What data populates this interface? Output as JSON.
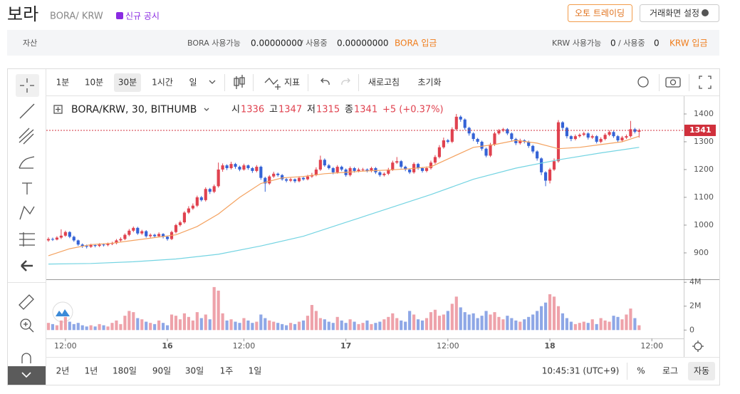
{
  "header": {
    "title": "보라",
    "pair": "BORA/ KRW",
    "badge": "신규 공시",
    "auto_trading": "오토 트레이딩",
    "settings": "거래화면 설정"
  },
  "asset_bar": {
    "label": "자산",
    "bora_available_label": "BORA 사용가능",
    "bora_available": "0.00000000",
    "bora_in_use_label": "/ 사용중",
    "bora_in_use": "0.00000000",
    "bora_deposit": "BORA 입금",
    "krw_available_label": "KRW 사용가능",
    "krw_available": "0",
    "krw_in_use_label": "/ 사용중",
    "krw_in_use": "0",
    "krw_deposit": "KRW 입금"
  },
  "toolbar": {
    "intervals": [
      "1분",
      "10분",
      "30분",
      "1시간",
      "일"
    ],
    "indicator": "지표",
    "refresh": "새로고침",
    "reset": "초기화"
  },
  "bottom_bar": {
    "ranges": [
      "2년",
      "1년",
      "180일",
      "90일",
      "30일",
      "1주",
      "1일"
    ],
    "clock": "10:45:31 (UTC+9)",
    "percent": "%",
    "log": "로그",
    "auto": "자동"
  },
  "chart_data": {
    "type": "candlestick",
    "legend": {
      "symbol": "BORA/KRW, 30, BITHUMB",
      "open_label": "시",
      "high_label": "고",
      "low_label": "저",
      "close_label": "종",
      "change": "+5 (+0.37%)"
    },
    "up_color": "#e0424f",
    "down_color": "#3563d6",
    "up_volume_color": "#eea2aa",
    "down_volume_color": "#8ea7e6",
    "last_price_color": "#d0303c",
    "xlim": [
      -0.5,
      149.5
    ],
    "xticks": [
      {
        "value": 4,
        "label": "12:00"
      },
      {
        "value": 28,
        "label": "16"
      },
      {
        "value": 46,
        "label": "12:00"
      },
      {
        "value": 70,
        "label": "17"
      },
      {
        "value": 94,
        "label": "12:00"
      },
      {
        "value": 118,
        "label": "18"
      },
      {
        "value": 142,
        "label": "12:00"
      }
    ],
    "ylim": [
      805,
      1464
    ],
    "yticks": [
      900,
      1000,
      1100,
      1200,
      1300,
      1400
    ],
    "volume_ylim": [
      -700000,
      4250000
    ],
    "volume_yticks": [
      0,
      {
        "value": 2000000,
        "label": "2M"
      },
      {
        "value": 4000000,
        "label": "4M"
      }
    ],
    "candles": [
      [
        945,
        956,
        940,
        950
      ],
      [
        950,
        955,
        943,
        948
      ],
      [
        948,
        960,
        945,
        955
      ],
      [
        955,
        985,
        950,
        962
      ],
      [
        962,
        980,
        958,
        975
      ],
      [
        975,
        978,
        953,
        958
      ],
      [
        958,
        962,
        940,
        945
      ],
      [
        945,
        948,
        925,
        930
      ],
      [
        930,
        934,
        918,
        925
      ],
      [
        925,
        930,
        916,
        922
      ],
      [
        922,
        933,
        918,
        928
      ],
      [
        928,
        932,
        920,
        925
      ],
      [
        925,
        935,
        921,
        930
      ],
      [
        930,
        934,
        923,
        928
      ],
      [
        928,
        937,
        924,
        932
      ],
      [
        932,
        940,
        928,
        935
      ],
      [
        935,
        950,
        931,
        945
      ],
      [
        945,
        956,
        940,
        950
      ],
      [
        950,
        970,
        946,
        965
      ],
      [
        965,
        986,
        960,
        980
      ],
      [
        980,
        995,
        975,
        990
      ],
      [
        990,
        994,
        965,
        970
      ],
      [
        970,
        983,
        965,
        978
      ],
      [
        978,
        982,
        955,
        960
      ],
      [
        960,
        970,
        955,
        965
      ],
      [
        965,
        969,
        954,
        960
      ],
      [
        960,
        974,
        956,
        968
      ],
      [
        968,
        971,
        952,
        958
      ],
      [
        958,
        962,
        944,
        950
      ],
      [
        950,
        980,
        946,
        975
      ],
      [
        975,
        1005,
        970,
        1000
      ],
      [
        1000,
        1016,
        995,
        1010
      ],
      [
        1010,
        1050,
        1005,
        1045
      ],
      [
        1045,
        1068,
        1040,
        1060
      ],
      [
        1060,
        1078,
        1055,
        1070
      ],
      [
        1070,
        1106,
        1065,
        1100
      ],
      [
        1100,
        1105,
        1085,
        1090
      ],
      [
        1090,
        1136,
        1085,
        1130
      ],
      [
        1130,
        1134,
        1112,
        1120
      ],
      [
        1120,
        1146,
        1115,
        1140
      ],
      [
        1140,
        1225,
        1135,
        1200
      ],
      [
        1200,
        1222,
        1192,
        1215
      ],
      [
        1215,
        1219,
        1198,
        1205
      ],
      [
        1205,
        1228,
        1200,
        1220
      ],
      [
        1220,
        1224,
        1203,
        1210
      ],
      [
        1210,
        1214,
        1194,
        1200
      ],
      [
        1200,
        1221,
        1196,
        1215
      ],
      [
        1215,
        1218,
        1199,
        1205
      ],
      [
        1205,
        1209,
        1188,
        1195
      ],
      [
        1195,
        1216,
        1190,
        1210
      ],
      [
        1210,
        1214,
        1163,
        1170
      ],
      [
        1170,
        1174,
        1120,
        1150
      ],
      [
        1150,
        1180,
        1145,
        1175
      ],
      [
        1175,
        1192,
        1170,
        1185
      ],
      [
        1185,
        1189,
        1174,
        1180
      ],
      [
        1180,
        1184,
        1160,
        1165
      ],
      [
        1165,
        1169,
        1154,
        1160
      ],
      [
        1160,
        1170,
        1155,
        1165
      ],
      [
        1165,
        1168,
        1152,
        1158
      ],
      [
        1158,
        1176,
        1154,
        1170
      ],
      [
        1170,
        1174,
        1160,
        1165
      ],
      [
        1165,
        1181,
        1161,
        1175
      ],
      [
        1175,
        1188,
        1170,
        1180
      ],
      [
        1180,
        1208,
        1176,
        1200
      ],
      [
        1200,
        1250,
        1195,
        1235
      ],
      [
        1235,
        1240,
        1210,
        1215
      ],
      [
        1215,
        1220,
        1200,
        1205
      ],
      [
        1205,
        1209,
        1183,
        1190
      ],
      [
        1190,
        1216,
        1185,
        1210
      ],
      [
        1210,
        1214,
        1194,
        1200
      ],
      [
        1200,
        1204,
        1174,
        1180
      ],
      [
        1180,
        1211,
        1175,
        1205
      ],
      [
        1205,
        1209,
        1189,
        1195
      ],
      [
        1195,
        1206,
        1190,
        1200
      ],
      [
        1200,
        1206,
        1194,
        1200
      ],
      [
        1200,
        1204,
        1190,
        1195
      ],
      [
        1195,
        1210,
        1190,
        1205
      ],
      [
        1205,
        1209,
        1184,
        1190
      ],
      [
        1190,
        1194,
        1174,
        1180
      ],
      [
        1180,
        1190,
        1175,
        1185
      ],
      [
        1185,
        1206,
        1180,
        1200
      ],
      [
        1200,
        1232,
        1195,
        1225
      ],
      [
        1225,
        1245,
        1220,
        1230
      ],
      [
        1230,
        1234,
        1204,
        1210
      ],
      [
        1210,
        1214,
        1194,
        1200
      ],
      [
        1200,
        1204,
        1184,
        1190
      ],
      [
        1190,
        1226,
        1185,
        1220
      ],
      [
        1220,
        1224,
        1199,
        1205
      ],
      [
        1205,
        1209,
        1189,
        1195
      ],
      [
        1195,
        1211,
        1190,
        1205
      ],
      [
        1205,
        1232,
        1200,
        1225
      ],
      [
        1225,
        1252,
        1220,
        1245
      ],
      [
        1245,
        1288,
        1240,
        1280
      ],
      [
        1280,
        1315,
        1275,
        1305
      ],
      [
        1305,
        1310,
        1294,
        1300
      ],
      [
        1300,
        1352,
        1295,
        1345
      ],
      [
        1345,
        1400,
        1340,
        1390
      ],
      [
        1390,
        1395,
        1372,
        1380
      ],
      [
        1380,
        1384,
        1343,
        1350
      ],
      [
        1350,
        1354,
        1322,
        1330
      ],
      [
        1330,
        1334,
        1302,
        1310
      ],
      [
        1310,
        1314,
        1292,
        1300
      ],
      [
        1300,
        1304,
        1268,
        1275
      ],
      [
        1275,
        1279,
        1244,
        1250
      ],
      [
        1250,
        1296,
        1245,
        1290
      ],
      [
        1290,
        1336,
        1285,
        1330
      ],
      [
        1330,
        1346,
        1325,
        1340
      ],
      [
        1340,
        1350,
        1335,
        1345
      ],
      [
        1345,
        1349,
        1324,
        1330
      ],
      [
        1330,
        1334,
        1304,
        1310
      ],
      [
        1310,
        1314,
        1288,
        1295
      ],
      [
        1295,
        1311,
        1290,
        1305
      ],
      [
        1305,
        1309,
        1294,
        1300
      ],
      [
        1300,
        1304,
        1278,
        1285
      ],
      [
        1285,
        1289,
        1258,
        1265
      ],
      [
        1265,
        1269,
        1232,
        1240
      ],
      [
        1240,
        1244,
        1180,
        1190
      ],
      [
        1190,
        1194,
        1140,
        1160
      ],
      [
        1160,
        1206,
        1150,
        1200
      ],
      [
        1200,
        1240,
        1195,
        1230
      ],
      [
        1230,
        1378,
        1225,
        1370
      ],
      [
        1370,
        1374,
        1340,
        1350
      ],
      [
        1350,
        1354,
        1312,
        1320
      ],
      [
        1320,
        1324,
        1302,
        1310
      ],
      [
        1310,
        1326,
        1305,
        1320
      ],
      [
        1320,
        1330,
        1315,
        1325
      ],
      [
        1325,
        1336,
        1320,
        1330
      ],
      [
        1330,
        1334,
        1308,
        1315
      ],
      [
        1315,
        1326,
        1310,
        1320
      ],
      [
        1320,
        1324,
        1294,
        1300
      ],
      [
        1300,
        1316,
        1295,
        1310
      ],
      [
        1310,
        1331,
        1305,
        1325
      ],
      [
        1325,
        1341,
        1320,
        1335
      ],
      [
        1335,
        1339,
        1314,
        1320
      ],
      [
        1320,
        1324,
        1298,
        1305
      ],
      [
        1305,
        1321,
        1300,
        1315
      ],
      [
        1315,
        1326,
        1310,
        1320
      ],
      [
        1320,
        1375,
        1315,
        1345
      ],
      [
        1345,
        1350,
        1330,
        1336
      ],
      [
        1336,
        1347,
        1315,
        1341
      ]
    ],
    "volume": [
      600000,
      500000,
      400000,
      800000,
      1100000,
      700000,
      500000,
      600000,
      400000,
      300000,
      400000,
      300000,
      500000,
      400000,
      300000,
      600000,
      800000,
      500000,
      1200000,
      1600000,
      1500000,
      1000000,
      900000,
      700000,
      600000,
      500000,
      800000,
      600000,
      400000,
      1300000,
      1200000,
      900000,
      1400000,
      1100000,
      800000,
      1500000,
      1000000,
      1300000,
      900000,
      3600000,
      3300000,
      1400000,
      800000,
      900000,
      700000,
      600000,
      1000000,
      800000,
      600000,
      700000,
      1300000,
      1000000,
      800000,
      700000,
      600000,
      500000,
      400000,
      600000,
      500000,
      700000,
      800000,
      1200000,
      2100000,
      1600000,
      1000000,
      900000,
      700000,
      600000,
      1100000,
      800000,
      600000,
      900000,
      700000,
      500000,
      600000,
      800000,
      500000,
      600000,
      700000,
      900000,
      1100000,
      1400000,
      1000000,
      800000,
      700000,
      1600000,
      1300000,
      900000,
      800000,
      1000000,
      1500000,
      1700000,
      1200000,
      1300000,
      1600000,
      2200000,
      2800000,
      1900000,
      1500000,
      1300000,
      1400000,
      1000000,
      1200000,
      1600000,
      1300000,
      1500000,
      1100000,
      900000,
      1200000,
      1000000,
      800000,
      700000,
      900000,
      1100000,
      1300000,
      1600000,
      2000000,
      2300000,
      3000000,
      2800000,
      2000000,
      1400000,
      1000000,
      700000,
      500000,
      600000,
      700000,
      600000,
      900000,
      500000,
      1000000,
      800000,
      700000,
      1200000,
      1100000,
      900000,
      1300000,
      1800000,
      1000000,
      400000
    ],
    "ma": [
      {
        "color": "#f4a260",
        "x": [
          0,
          5,
          10,
          15,
          20,
          25,
          30,
          35,
          40,
          45,
          50,
          55,
          60,
          65,
          70,
          75,
          80,
          85,
          90,
          95,
          100,
          105,
          110,
          115,
          120,
          125,
          130,
          135,
          139
        ],
        "values": [
          890,
          915,
          930,
          935,
          945,
          955,
          965,
          995,
          1040,
          1100,
          1150,
          1170,
          1175,
          1185,
          1190,
          1195,
          1198,
          1203,
          1210,
          1245,
          1280,
          1290,
          1305,
          1295,
          1275,
          1280,
          1290,
          1300,
          1320
        ]
      },
      {
        "color": "#74d4e2",
        "x": [
          0,
          10,
          20,
          30,
          40,
          50,
          60,
          70,
          80,
          90,
          100,
          110,
          120,
          130,
          139
        ],
        "values": [
          860,
          862,
          868,
          878,
          895,
          925,
          960,
          1010,
          1060,
          1110,
          1165,
          1205,
          1235,
          1260,
          1280
        ]
      }
    ]
  }
}
